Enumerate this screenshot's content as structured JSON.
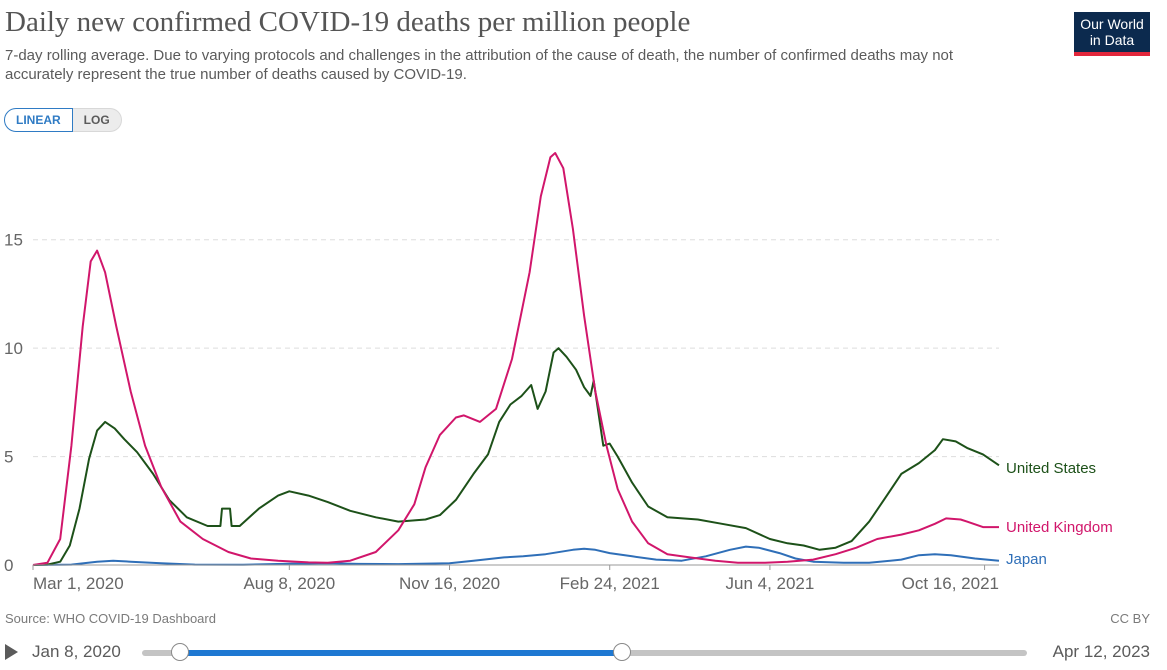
{
  "header": {
    "title": "Daily new confirmed COVID-19 deaths per million people",
    "subtitle": "7-day rolling average. Due to varying protocols and challenges in the attribution of the cause of death, the number of confirmed deaths may not accurately represent the true number of deaths caused by COVID-19.",
    "logo_line1": "Our World",
    "logo_line2": "in Data"
  },
  "scale_toggle": {
    "linear_label": "LINEAR",
    "log_label": "LOG",
    "selected": "LINEAR"
  },
  "footer": {
    "source": "Source: WHO COVID-19 Dashboard",
    "license": "CC BY"
  },
  "timeline": {
    "start_label": "Jan 8, 2020",
    "end_label": "Apr 12, 2023",
    "range_start_fraction": 0.04,
    "range_end_fraction": 0.54
  },
  "colors": {
    "United States": "#1d5119",
    "United Kingdom": "#d1166b",
    "Japan": "#2f6fb8",
    "accent": "#1e78d2"
  },
  "chart_data": {
    "type": "line",
    "title": "Daily new confirmed COVID-19 deaths per million people",
    "xlabel": "",
    "ylabel": "",
    "x_range": [
      "2020-03-01",
      "2021-10-25"
    ],
    "x_ticks": [
      {
        "date": "2020-03-01",
        "label": "Mar 1, 2020"
      },
      {
        "date": "2020-08-08",
        "label": "Aug 8, 2020"
      },
      {
        "date": "2020-11-16",
        "label": "Nov 16, 2020"
      },
      {
        "date": "2021-02-24",
        "label": "Feb 24, 2021"
      },
      {
        "date": "2021-06-04",
        "label": "Jun 4, 2021"
      },
      {
        "date": "2021-10-16",
        "label": "Oct 16, 2021"
      }
    ],
    "ylim": [
      0,
      19
    ],
    "y_ticks": [
      {
        "value": 0,
        "label": "0"
      },
      {
        "value": 5,
        "label": "5"
      },
      {
        "value": 10,
        "label": "10"
      },
      {
        "value": 15,
        "label": "15"
      }
    ],
    "grid": "horizontal dashed",
    "legend": "right, labels at line ends",
    "series": [
      {
        "name": "United States",
        "points": [
          [
            "2020-03-01",
            0
          ],
          [
            "2020-03-10",
            0.02
          ],
          [
            "2020-03-18",
            0.15
          ],
          [
            "2020-03-24",
            0.9
          ],
          [
            "2020-03-30",
            2.6
          ],
          [
            "2020-04-05",
            4.9
          ],
          [
            "2020-04-10",
            6.2
          ],
          [
            "2020-04-15",
            6.6
          ],
          [
            "2020-04-21",
            6.3
          ],
          [
            "2020-04-27",
            5.8
          ],
          [
            "2020-05-05",
            5.2
          ],
          [
            "2020-05-15",
            4.2
          ],
          [
            "2020-05-25",
            3.0
          ],
          [
            "2020-06-05",
            2.2
          ],
          [
            "2020-06-18",
            1.8
          ],
          [
            "2020-06-26",
            1.8
          ],
          [
            "2020-06-27",
            2.6
          ],
          [
            "2020-07-02",
            2.6
          ],
          [
            "2020-07-03",
            1.8
          ],
          [
            "2020-07-08",
            1.8
          ],
          [
            "2020-07-20",
            2.6
          ],
          [
            "2020-08-01",
            3.2
          ],
          [
            "2020-08-08",
            3.4
          ],
          [
            "2020-08-20",
            3.2
          ],
          [
            "2020-09-01",
            2.9
          ],
          [
            "2020-09-15",
            2.5
          ],
          [
            "2020-10-01",
            2.2
          ],
          [
            "2020-10-15",
            2.0
          ],
          [
            "2020-11-01",
            2.1
          ],
          [
            "2020-11-10",
            2.3
          ],
          [
            "2020-11-20",
            3.0
          ],
          [
            "2020-12-01",
            4.2
          ],
          [
            "2020-12-10",
            5.1
          ],
          [
            "2020-12-17",
            6.6
          ],
          [
            "2020-12-24",
            7.4
          ],
          [
            "2020-12-31",
            7.8
          ],
          [
            "2021-01-06",
            8.3
          ],
          [
            "2021-01-10",
            7.2
          ],
          [
            "2021-01-15",
            8.0
          ],
          [
            "2021-01-20",
            9.8
          ],
          [
            "2021-01-23",
            10.0
          ],
          [
            "2021-01-28",
            9.6
          ],
          [
            "2021-02-03",
            9.0
          ],
          [
            "2021-02-08",
            8.2
          ],
          [
            "2021-02-12",
            7.8
          ],
          [
            "2021-02-14",
            8.5
          ],
          [
            "2021-02-18",
            6.5
          ],
          [
            "2021-02-20",
            5.5
          ],
          [
            "2021-02-24",
            5.6
          ],
          [
            "2021-03-01",
            5.0
          ],
          [
            "2021-03-10",
            3.8
          ],
          [
            "2021-03-20",
            2.7
          ],
          [
            "2021-04-01",
            2.2
          ],
          [
            "2021-04-20",
            2.1
          ],
          [
            "2021-05-05",
            1.9
          ],
          [
            "2021-05-20",
            1.7
          ],
          [
            "2021-06-04",
            1.2
          ],
          [
            "2021-06-15",
            1.0
          ],
          [
            "2021-06-25",
            0.9
          ],
          [
            "2021-07-05",
            0.7
          ],
          [
            "2021-07-15",
            0.8
          ],
          [
            "2021-07-25",
            1.1
          ],
          [
            "2021-08-05",
            2.0
          ],
          [
            "2021-08-15",
            3.1
          ],
          [
            "2021-08-25",
            4.2
          ],
          [
            "2021-09-05",
            4.7
          ],
          [
            "2021-09-10",
            5.0
          ],
          [
            "2021-09-15",
            5.3
          ],
          [
            "2021-09-20",
            5.8
          ],
          [
            "2021-09-28",
            5.7
          ],
          [
            "2021-10-05",
            5.4
          ],
          [
            "2021-10-15",
            5.1
          ],
          [
            "2021-10-25",
            4.6
          ]
        ]
      },
      {
        "name": "United Kingdom",
        "points": [
          [
            "2020-03-01",
            0
          ],
          [
            "2020-03-10",
            0.1
          ],
          [
            "2020-03-18",
            1.2
          ],
          [
            "2020-03-25",
            5.5
          ],
          [
            "2020-04-01",
            11.0
          ],
          [
            "2020-04-06",
            14.0
          ],
          [
            "2020-04-10",
            14.5
          ],
          [
            "2020-04-15",
            13.5
          ],
          [
            "2020-04-22",
            11.0
          ],
          [
            "2020-05-01",
            8.0
          ],
          [
            "2020-05-10",
            5.5
          ],
          [
            "2020-05-20",
            3.6
          ],
          [
            "2020-06-01",
            2.0
          ],
          [
            "2020-06-15",
            1.2
          ],
          [
            "2020-07-01",
            0.6
          ],
          [
            "2020-07-15",
            0.3
          ],
          [
            "2020-08-01",
            0.2
          ],
          [
            "2020-08-20",
            0.12
          ],
          [
            "2020-09-01",
            0.1
          ],
          [
            "2020-09-15",
            0.2
          ],
          [
            "2020-10-01",
            0.6
          ],
          [
            "2020-10-15",
            1.6
          ],
          [
            "2020-10-25",
            2.8
          ],
          [
            "2020-11-01",
            4.5
          ],
          [
            "2020-11-10",
            6.0
          ],
          [
            "2020-11-20",
            6.8
          ],
          [
            "2020-11-25",
            6.9
          ],
          [
            "2020-12-05",
            6.6
          ],
          [
            "2020-12-15",
            7.2
          ],
          [
            "2020-12-25",
            9.5
          ],
          [
            "2021-01-05",
            13.5
          ],
          [
            "2021-01-12",
            17.0
          ],
          [
            "2021-01-18",
            18.8
          ],
          [
            "2021-01-21",
            19.0
          ],
          [
            "2021-01-26",
            18.3
          ],
          [
            "2021-02-01",
            15.5
          ],
          [
            "2021-02-08",
            11.5
          ],
          [
            "2021-02-15",
            8.0
          ],
          [
            "2021-02-22",
            5.5
          ],
          [
            "2021-03-01",
            3.5
          ],
          [
            "2021-03-10",
            2.0
          ],
          [
            "2021-03-20",
            1.0
          ],
          [
            "2021-04-01",
            0.5
          ],
          [
            "2021-04-15",
            0.35
          ],
          [
            "2021-05-01",
            0.2
          ],
          [
            "2021-05-15",
            0.1
          ],
          [
            "2021-06-01",
            0.1
          ],
          [
            "2021-06-15",
            0.15
          ],
          [
            "2021-07-01",
            0.25
          ],
          [
            "2021-07-15",
            0.5
          ],
          [
            "2021-07-28",
            0.8
          ],
          [
            "2021-08-10",
            1.2
          ],
          [
            "2021-08-25",
            1.4
          ],
          [
            "2021-09-05",
            1.6
          ],
          [
            "2021-09-15",
            1.9
          ],
          [
            "2021-09-22",
            2.15
          ],
          [
            "2021-10-01",
            2.1
          ],
          [
            "2021-10-05",
            2.0
          ],
          [
            "2021-10-15",
            1.75
          ],
          [
            "2021-10-25",
            1.75
          ]
        ]
      },
      {
        "name": "Japan",
        "points": [
          [
            "2020-03-01",
            0
          ],
          [
            "2020-03-25",
            0.02
          ],
          [
            "2020-04-10",
            0.15
          ],
          [
            "2020-04-20",
            0.2
          ],
          [
            "2020-05-01",
            0.15
          ],
          [
            "2020-05-20",
            0.08
          ],
          [
            "2020-06-10",
            0.02
          ],
          [
            "2020-07-10",
            0.01
          ],
          [
            "2020-08-08",
            0.06
          ],
          [
            "2020-09-01",
            0.08
          ],
          [
            "2020-09-20",
            0.05
          ],
          [
            "2020-10-15",
            0.04
          ],
          [
            "2020-11-16",
            0.08
          ],
          [
            "2020-12-01",
            0.2
          ],
          [
            "2020-12-20",
            0.35
          ],
          [
            "2021-01-01",
            0.4
          ],
          [
            "2021-01-15",
            0.5
          ],
          [
            "2021-02-01",
            0.7
          ],
          [
            "2021-02-08",
            0.75
          ],
          [
            "2021-02-15",
            0.7
          ],
          [
            "2021-02-24",
            0.55
          ],
          [
            "2021-03-10",
            0.4
          ],
          [
            "2021-03-25",
            0.25
          ],
          [
            "2021-04-10",
            0.2
          ],
          [
            "2021-04-25",
            0.4
          ],
          [
            "2021-05-10",
            0.7
          ],
          [
            "2021-05-20",
            0.85
          ],
          [
            "2021-05-28",
            0.8
          ],
          [
            "2021-06-10",
            0.55
          ],
          [
            "2021-06-20",
            0.3
          ],
          [
            "2021-07-01",
            0.15
          ],
          [
            "2021-07-20",
            0.1
          ],
          [
            "2021-08-05",
            0.1
          ],
          [
            "2021-08-25",
            0.25
          ],
          [
            "2021-09-05",
            0.45
          ],
          [
            "2021-09-15",
            0.5
          ],
          [
            "2021-09-25",
            0.45
          ],
          [
            "2021-10-10",
            0.3
          ],
          [
            "2021-10-25",
            0.2
          ]
        ]
      }
    ]
  }
}
